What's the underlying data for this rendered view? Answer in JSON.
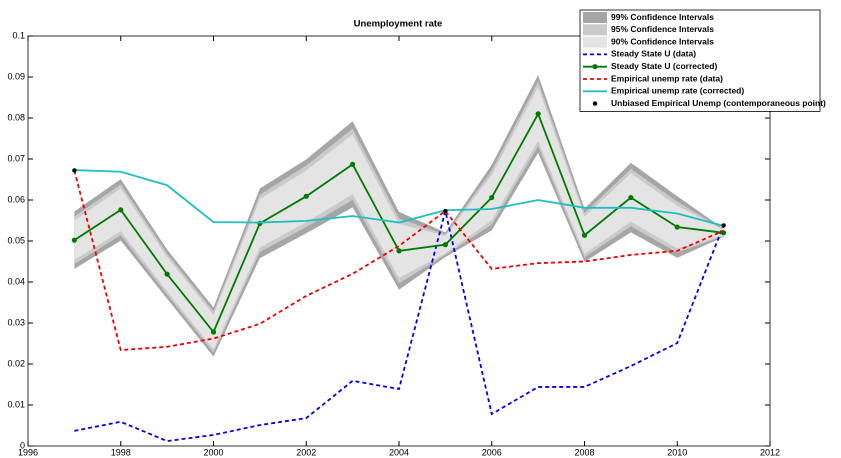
{
  "chart_data": {
    "type": "line",
    "title": "Unemployment rate",
    "xlim": [
      1996,
      2012
    ],
    "xticks": [
      1996,
      1998,
      2000,
      2002,
      2004,
      2006,
      2008,
      2010,
      2012
    ],
    "ylim": [
      0,
      0.1
    ],
    "yticks": [
      0,
      0.01,
      0.02,
      0.03,
      0.04,
      0.05,
      0.06,
      0.07,
      0.08,
      0.09,
      0.1
    ],
    "x": [
      1997,
      1998,
      1999,
      2000,
      2001,
      2002,
      2003,
      2004,
      2005,
      2006,
      2007,
      2008,
      2009,
      2010,
      2011
    ],
    "legend": "upper right",
    "series": [
      {
        "name": "99% Confidence Intervals",
        "style": "band",
        "color": "#a6a6a6",
        "lower": [
          0.0432,
          0.0501,
          0.0359,
          0.0218,
          0.0458,
          0.0519,
          0.0582,
          0.0381,
          0.0461,
          0.0526,
          0.0715,
          0.0449,
          0.0521,
          0.0459,
          0.051
        ],
        "upper": [
          0.0572,
          0.0651,
          0.0479,
          0.0338,
          0.0628,
          0.0699,
          0.0792,
          0.0571,
          0.0521,
          0.0686,
          0.0905,
          0.0579,
          0.0691,
          0.0609,
          0.053
        ]
      },
      {
        "name": "95% Confidence Intervals",
        "style": "band",
        "color": "#cacaca",
        "lower": [
          0.0444,
          0.0514,
          0.0369,
          0.0228,
          0.0473,
          0.0534,
          0.06,
          0.0397,
          0.0466,
          0.054,
          0.0731,
          0.046,
          0.0536,
          0.0472,
          0.0512
        ],
        "upper": [
          0.056,
          0.0638,
          0.0469,
          0.0328,
          0.0613,
          0.0684,
          0.0774,
          0.0555,
          0.0516,
          0.0672,
          0.0889,
          0.0568,
          0.0676,
          0.0596,
          0.0528
        ]
      },
      {
        "name": "90% Confidence Intervals",
        "style": "band",
        "color": "#e4e4e4",
        "lower": [
          0.0454,
          0.0524,
          0.0377,
          0.0236,
          0.0484,
          0.0546,
          0.0614,
          0.041,
          0.047,
          0.0551,
          0.0744,
          0.0469,
          0.0547,
          0.0482,
          0.0513
        ],
        "upper": [
          0.055,
          0.0628,
          0.0461,
          0.032,
          0.0602,
          0.0672,
          0.076,
          0.0542,
          0.0512,
          0.0661,
          0.0876,
          0.0559,
          0.0665,
          0.0586,
          0.0527
        ]
      },
      {
        "name": "Steady State U (data)",
        "style": "dashed",
        "color": "#0000ee",
        "values": [
          0.0037,
          0.0059,
          0.0012,
          0.0027,
          0.0051,
          0.0068,
          0.0159,
          0.0139,
          0.0573,
          0.0078,
          0.0144,
          0.0144,
          0.0195,
          0.0251,
          0.0539
        ]
      },
      {
        "name": "Steady State U (corrected)",
        "style": "solid",
        "marker": true,
        "color": "#007a00",
        "values": [
          0.0502,
          0.0576,
          0.0419,
          0.0278,
          0.0543,
          0.0609,
          0.0687,
          0.0476,
          0.0491,
          0.0606,
          0.081,
          0.0514,
          0.0606,
          0.0534,
          0.052
        ]
      },
      {
        "name": "Empirical unemp rate (data)",
        "style": "dashed",
        "color": "#ee0000",
        "values": [
          0.0672,
          0.0234,
          0.0242,
          0.0262,
          0.0298,
          0.0366,
          0.042,
          0.0488,
          0.0573,
          0.0432,
          0.0446,
          0.045,
          0.0466,
          0.0476,
          0.0525
        ]
      },
      {
        "name": "Empirical unemp rate (corrected)",
        "style": "solid",
        "color": "#1fbfbf",
        "values": [
          0.0673,
          0.0669,
          0.0636,
          0.0546,
          0.0545,
          0.0549,
          0.0561,
          0.0545,
          0.0575,
          0.0578,
          0.06,
          0.0581,
          0.0581,
          0.0567,
          0.0537
        ]
      },
      {
        "name": "Unbiased Empirical Unemp (contemporaneous point)",
        "style": "points",
        "color": "#000000",
        "x": [
          1997,
          2005,
          2011
        ],
        "values": [
          0.0672,
          0.0573,
          0.0538
        ]
      }
    ]
  }
}
